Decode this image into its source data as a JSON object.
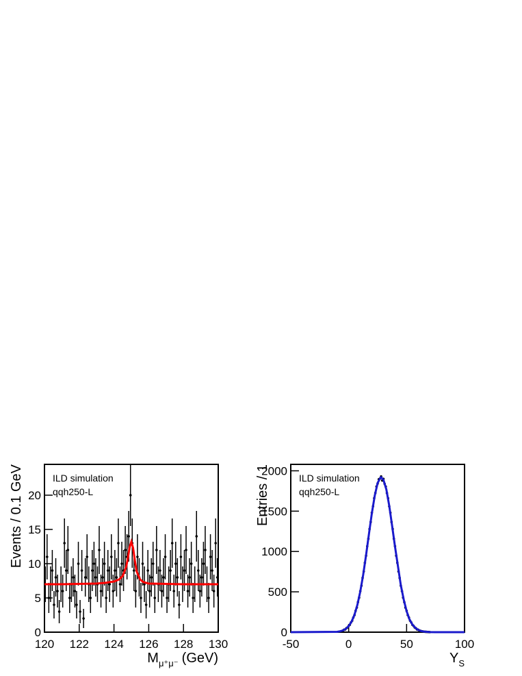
{
  "chart_data": [
    {
      "type": "scatter",
      "annotations": [
        "ILD simulation",
        "qqh250-L"
      ],
      "ylabel": "Events / 0.1 GeV",
      "xlabel": {
        "main": "M",
        "sub": "μ⁺μ⁻",
        "unit": "(GeV)"
      },
      "bins": [
        120,
        120.1,
        120.2,
        120.3,
        120.4,
        120.5,
        120.6,
        120.7,
        120.8,
        120.9,
        121,
        121.1,
        121.2,
        121.3,
        121.4,
        121.5,
        121.6,
        121.7,
        121.8,
        121.9,
        122,
        122.1,
        122.2,
        122.3,
        122.4,
        122.5,
        122.6,
        122.7,
        122.8,
        122.9,
        123,
        123.1,
        123.2,
        123.3,
        123.4,
        123.5,
        123.6,
        123.7,
        123.8,
        123.9,
        124,
        124.1,
        124.2,
        124.3,
        124.4,
        124.5,
        124.6,
        124.7,
        124.8,
        124.9,
        125,
        125.1,
        125.2,
        125.3,
        125.4,
        125.5,
        125.6,
        125.7,
        125.8,
        125.9,
        126,
        126.1,
        126.2,
        126.3,
        126.4,
        126.5,
        126.6,
        126.7,
        126.8,
        126.9,
        127,
        127.1,
        127.2,
        127.3,
        127.4,
        127.5,
        127.6,
        127.7,
        127.8,
        127.9,
        128,
        128.1,
        128.2,
        128.3,
        128.4,
        128.5,
        128.6,
        128.7,
        128.8,
        128.9,
        129,
        129.1,
        129.2,
        129.3,
        129.4,
        129.5,
        129.6,
        129.7,
        129.8,
        129.9,
        130
      ],
      "values": [
        7,
        11,
        5,
        7,
        9,
        4,
        8,
        6,
        3,
        7,
        6,
        13,
        9,
        12,
        5,
        7,
        8,
        6,
        4,
        10,
        3,
        9,
        2,
        8,
        11,
        7,
        5,
        9,
        10,
        8,
        7,
        12,
        6,
        8,
        10,
        5,
        9,
        7,
        11,
        6,
        9,
        8,
        13,
        7,
        10,
        9,
        12,
        11,
        14,
        20,
        13,
        9,
        6,
        11,
        8,
        5,
        10,
        7,
        4,
        9,
        6,
        8,
        10,
        5,
        12,
        7,
        9,
        6,
        8,
        11,
        5,
        7,
        9,
        13,
        6,
        10,
        8,
        4,
        11,
        7,
        9,
        12,
        6,
        8,
        10,
        5,
        7,
        14,
        9,
        6,
        8,
        10,
        12,
        7,
        5,
        11,
        9,
        6,
        13,
        8
      ],
      "errors": [
        2.6,
        3.3,
        2.2,
        2.6,
        3,
        2,
        2.8,
        2.4,
        1.7,
        2.6,
        2.4,
        3.6,
        3,
        3.5,
        2.2,
        2.6,
        2.8,
        2.4,
        2,
        3.2,
        1.7,
        3,
        1.4,
        2.8,
        3.3,
        2.6,
        2.2,
        3,
        3.2,
        2.8,
        2.6,
        3.5,
        2.4,
        2.8,
        3.2,
        2.2,
        3,
        2.6,
        3.3,
        2.4,
        3,
        2.8,
        3.6,
        2.6,
        3.2,
        3,
        3.5,
        3.3,
        3.7,
        4.5,
        3.6,
        3,
        2.4,
        3.3,
        2.8,
        2.2,
        3.2,
        2.6,
        2,
        3,
        2.4,
        2.8,
        3.2,
        2.2,
        3.5,
        2.6,
        3,
        2.4,
        2.8,
        3.3,
        2.2,
        2.6,
        3,
        3.6,
        2.4,
        3.2,
        2.8,
        2,
        3.3,
        2.6,
        3,
        3.5,
        2.4,
        2.8,
        3.2,
        2.2,
        2.6,
        3.7,
        3,
        2.4,
        2.8,
        3.2,
        3.5,
        2.6,
        2.2,
        3.3,
        3,
        2.4,
        3.6,
        2.8
      ],
      "color": "#000000",
      "fit": {
        "color": "#ff0000",
        "x": [
          120,
          121,
          122,
          123,
          123.5,
          124,
          124.3,
          124.5,
          124.7,
          124.8,
          124.9,
          125,
          125.1,
          125.2,
          125.3,
          125.5,
          125.7,
          126,
          127,
          128,
          129,
          130
        ],
        "values": [
          7,
          7,
          7.05,
          7.1,
          7.2,
          7.4,
          7.7,
          8.2,
          9.5,
          10.8,
          12.4,
          13.2,
          12.3,
          10.5,
          8.9,
          7.7,
          7.3,
          7.1,
          7.05,
          7,
          7,
          7
        ]
      },
      "xlim": [
        120,
        130
      ],
      "ylim": [
        0,
        24.5
      ],
      "xticks": [
        120,
        122,
        124,
        126,
        128,
        130
      ],
      "yticks": [
        0,
        5,
        10,
        15,
        20
      ]
    },
    {
      "type": "scatter",
      "annotations": [
        "ILD simulation",
        "qqh250-L"
      ],
      "ylabel": "Entries / 1",
      "xlabel": {
        "main": "Y",
        "sub": "S"
      },
      "x": [
        -5,
        -4,
        -3,
        -2,
        -1,
        0,
        1,
        2,
        3,
        4,
        5,
        6,
        7,
        8,
        9,
        10,
        11,
        12,
        13,
        14,
        15,
        16,
        17,
        18,
        19,
        20,
        21,
        22,
        23,
        24,
        25,
        26,
        27,
        28,
        29,
        30,
        31,
        32,
        33,
        34,
        35,
        36,
        37,
        38,
        39,
        40,
        41,
        42,
        43,
        44,
        45,
        46,
        47,
        48,
        49,
        50,
        51,
        52,
        53,
        54,
        55,
        56,
        57,
        58,
        59,
        60,
        61,
        62,
        63,
        64,
        65,
        66,
        67,
        68,
        69,
        70
      ],
      "values": [
        20,
        30,
        34,
        49,
        58,
        78,
        92,
        121,
        142,
        181,
        212,
        265,
        305,
        372,
        428,
        508,
        576,
        672,
        752,
        860,
        948,
        1065,
        1158,
        1278,
        1366,
        1480,
        1560,
        1660,
        1725,
        1805,
        1842,
        1895,
        1905,
        1930,
        1880,
        1900,
        1840,
        1805,
        1725,
        1660,
        1560,
        1480,
        1365,
        1278,
        1158,
        1065,
        948,
        860,
        752,
        672,
        576,
        508,
        428,
        372,
        305,
        265,
        212,
        181,
        142,
        121,
        92,
        78,
        58,
        49,
        34,
        30,
        20,
        17,
        11,
        9,
        6,
        5,
        4,
        3,
        2,
        1
      ],
      "color": "#000000",
      "fit": {
        "color": "#1a1acc",
        "x": [
          -50,
          -10,
          -7.5,
          -5,
          -2.5,
          0,
          2.5,
          5,
          7.5,
          10,
          12.5,
          15,
          17.5,
          20,
          22.5,
          25,
          27.5,
          28,
          30,
          32.5,
          35,
          37.5,
          40,
          42.5,
          45,
          47.5,
          50,
          52.5,
          55,
          57.5,
          60,
          62.5,
          65,
          70,
          75,
          100
        ],
        "values": [
          0,
          4,
          11,
          21,
          41,
          75,
          131,
          216,
          338,
          503,
          710,
          955,
          1218,
          1474,
          1692,
          1850,
          1915,
          1920,
          1888,
          1770,
          1568,
          1317,
          1059,
          821,
          582,
          405,
          260,
          158,
          95,
          54,
          28,
          14,
          7,
          1,
          0,
          0
        ]
      },
      "xlim": [
        -50,
        100
      ],
      "ylim": [
        0,
        2080
      ],
      "xticks": [
        -50,
        0,
        50,
        100
      ],
      "yticks": [
        0,
        500,
        1000,
        1500,
        2000
      ]
    }
  ]
}
